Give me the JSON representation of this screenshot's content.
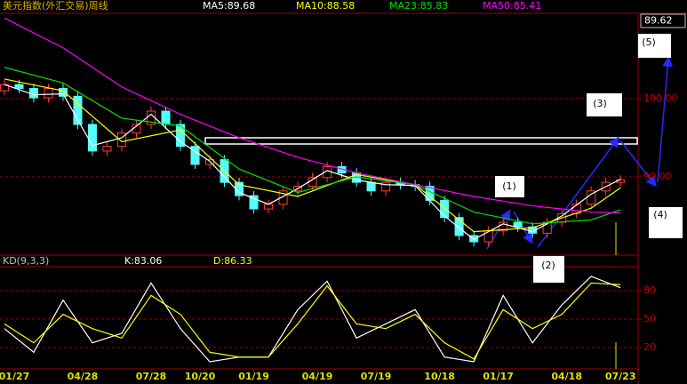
{
  "chart_data": [
    {
      "type": "candlestick",
      "title": "美元指数(外汇交易)周线",
      "current_price": 89.62,
      "up_color": "#ff3c3c",
      "down_color": "#54fcfc",
      "x": [
        0,
        3,
        6,
        9,
        12,
        15,
        18,
        21,
        24,
        27,
        30,
        33,
        36,
        39,
        42,
        45,
        48,
        51,
        54,
        57,
        60,
        63,
        66,
        69,
        72,
        75,
        78,
        81,
        84,
        87,
        90,
        93,
        96,
        99,
        102,
        105,
        108,
        111,
        114,
        117,
        120,
        123,
        126
      ],
      "open": [
        101.0,
        101.8,
        101.3,
        100.1,
        101.3,
        100.3,
        96.7,
        93.3,
        93.9,
        95.6,
        96.7,
        98.4,
        96.7,
        93.9,
        91.6,
        92.2,
        89.3,
        87.6,
        85.9,
        86.5,
        88.2,
        88.8,
        89.9,
        91.3,
        90.5,
        89.3,
        88.2,
        89.3,
        89.0,
        88.8,
        87.0,
        84.8,
        82.5,
        81.7,
        83.1,
        84.2,
        83.6,
        82.8,
        84.2,
        85.3,
        86.5,
        88.2,
        89.3
      ],
      "high": [
        102.4,
        102.4,
        101.9,
        101.9,
        101.9,
        100.9,
        97.3,
        94.5,
        96.2,
        97.3,
        99.0,
        99.0,
        97.3,
        94.5,
        92.8,
        92.8,
        89.9,
        88.2,
        87.1,
        88.8,
        89.4,
        90.5,
        91.9,
        91.9,
        91.1,
        89.9,
        89.9,
        89.9,
        89.6,
        89.4,
        87.6,
        85.4,
        83.1,
        83.7,
        84.8,
        84.8,
        84.2,
        84.8,
        85.9,
        87.1,
        88.8,
        89.9,
        90.2
      ],
      "low": [
        100.4,
        100.7,
        99.5,
        99.5,
        99.7,
        96.1,
        92.7,
        92.7,
        93.3,
        95.0,
        96.1,
        96.1,
        93.3,
        91.0,
        91.0,
        88.7,
        87.0,
        85.3,
        85.3,
        85.9,
        87.6,
        88.2,
        89.3,
        89.9,
        88.7,
        87.6,
        87.6,
        88.4,
        88.2,
        86.4,
        84.2,
        81.9,
        81.1,
        81.1,
        82.5,
        83.0,
        82.2,
        82.2,
        83.6,
        84.7,
        85.9,
        87.6,
        88.7
      ],
      "close": [
        101.8,
        101.3,
        100.1,
        101.3,
        100.3,
        96.7,
        93.3,
        93.9,
        95.6,
        96.7,
        98.4,
        96.7,
        93.9,
        91.6,
        92.2,
        89.3,
        87.6,
        85.9,
        86.5,
        88.2,
        88.8,
        89.9,
        91.3,
        90.5,
        89.3,
        88.2,
        89.3,
        89.0,
        88.8,
        87.0,
        84.8,
        82.5,
        81.7,
        83.1,
        84.2,
        83.6,
        82.8,
        84.2,
        85.3,
        86.5,
        88.2,
        89.3,
        89.6
      ],
      "series": [
        {
          "name": "MA5:89.68",
          "color": "#ffffff",
          "x": [
            0,
            6,
            12,
            18,
            24,
            30,
            36,
            42,
            48,
            54,
            60,
            66,
            72,
            78,
            84,
            90,
            96,
            102,
            108,
            114,
            120,
            126
          ],
          "values": [
            101.8,
            100.5,
            100.6,
            94.0,
            95.0,
            98.0,
            94.5,
            92.0,
            88.0,
            86.5,
            88.5,
            90.8,
            89.6,
            89.0,
            88.9,
            85.0,
            82.0,
            84.0,
            83.0,
            85.0,
            87.8,
            89.7
          ]
        },
        {
          "name": "MA10:88.58",
          "color": "#ffff00",
          "x": [
            0,
            12,
            24,
            36,
            48,
            60,
            72,
            84,
            96,
            108,
            120,
            126
          ],
          "values": [
            102.5,
            101.0,
            94.5,
            96.0,
            89.0,
            87.5,
            90.3,
            89.0,
            83.0,
            83.5,
            86.0,
            88.6
          ]
        },
        {
          "name": "MA23:85.83",
          "color": "#00e000",
          "x": [
            0,
            12,
            24,
            36,
            48,
            60,
            72,
            84,
            96,
            108,
            120,
            126
          ],
          "values": [
            104.0,
            102.0,
            97.5,
            96.5,
            91.0,
            88.0,
            90.0,
            89.0,
            85.5,
            84.0,
            84.5,
            85.8
          ]
        },
        {
          "name": "MA50:85.41",
          "color": "#ff00ff",
          "x": [
            0,
            12,
            24,
            36,
            48,
            60,
            72,
            84,
            96,
            108,
            120,
            126
          ],
          "values": [
            110.3,
            106.5,
            101.5,
            98.0,
            95.0,
            92.5,
            90.5,
            89.0,
            87.5,
            86.3,
            85.5,
            85.4
          ]
        }
      ],
      "xlim": [
        -0.9,
        129.6
      ],
      "ylim": [
        80,
        110.9
      ],
      "yticks": [
        {
          "value": 90,
          "label": "90.00"
        },
        {
          "value": 100,
          "label": "100.00"
        }
      ],
      "xticks": [
        {
          "value": 2,
          "label": "01/27"
        },
        {
          "value": 16,
          "label": "04/28"
        },
        {
          "value": 30,
          "label": "07/28"
        },
        {
          "value": 40,
          "label": "10/20"
        },
        {
          "value": 51,
          "label": "01/19"
        },
        {
          "value": 64,
          "label": "04/19"
        },
        {
          "value": 76,
          "label": "07/19"
        },
        {
          "value": 89,
          "label": "10/18"
        },
        {
          "value": 101,
          "label": "01/17"
        },
        {
          "value": 115,
          "label": "04/18"
        },
        {
          "value": 126,
          "label": "07/23"
        }
      ],
      "grid": true,
      "annotations": [
        "(1)",
        "(2)",
        "(3)",
        "(4)",
        "(5)"
      ]
    },
    {
      "type": "line",
      "title": "KD(9,3,3)",
      "series": [
        {
          "name": "K:83.06",
          "color": "#ffffff",
          "x": [
            0,
            6,
            12,
            18,
            24,
            30,
            36,
            42,
            48,
            54,
            60,
            66,
            72,
            78,
            84,
            90,
            96,
            102,
            108,
            114,
            120,
            126
          ],
          "values": [
            40,
            15,
            70,
            25,
            35,
            88,
            40,
            5,
            10,
            10,
            60,
            90,
            30,
            45,
            60,
            10,
            5,
            75,
            25,
            65,
            95,
            83.06
          ]
        },
        {
          "name": "D:86.33",
          "color": "#ffff00",
          "x": [
            0,
            6,
            12,
            18,
            24,
            30,
            36,
            42,
            48,
            54,
            60,
            66,
            72,
            78,
            84,
            90,
            96,
            102,
            108,
            114,
            120,
            126
          ],
          "values": [
            45,
            25,
            55,
            40,
            30,
            75,
            55,
            15,
            10,
            10,
            45,
            85,
            45,
            40,
            55,
            25,
            8,
            60,
            40,
            55,
            88,
            86.33
          ]
        }
      ],
      "xlim": [
        -0.9,
        129.6
      ],
      "ylim": [
        -2.5,
        105.3
      ],
      "yticks": [
        20,
        50,
        80
      ],
      "grid": true
    }
  ]
}
